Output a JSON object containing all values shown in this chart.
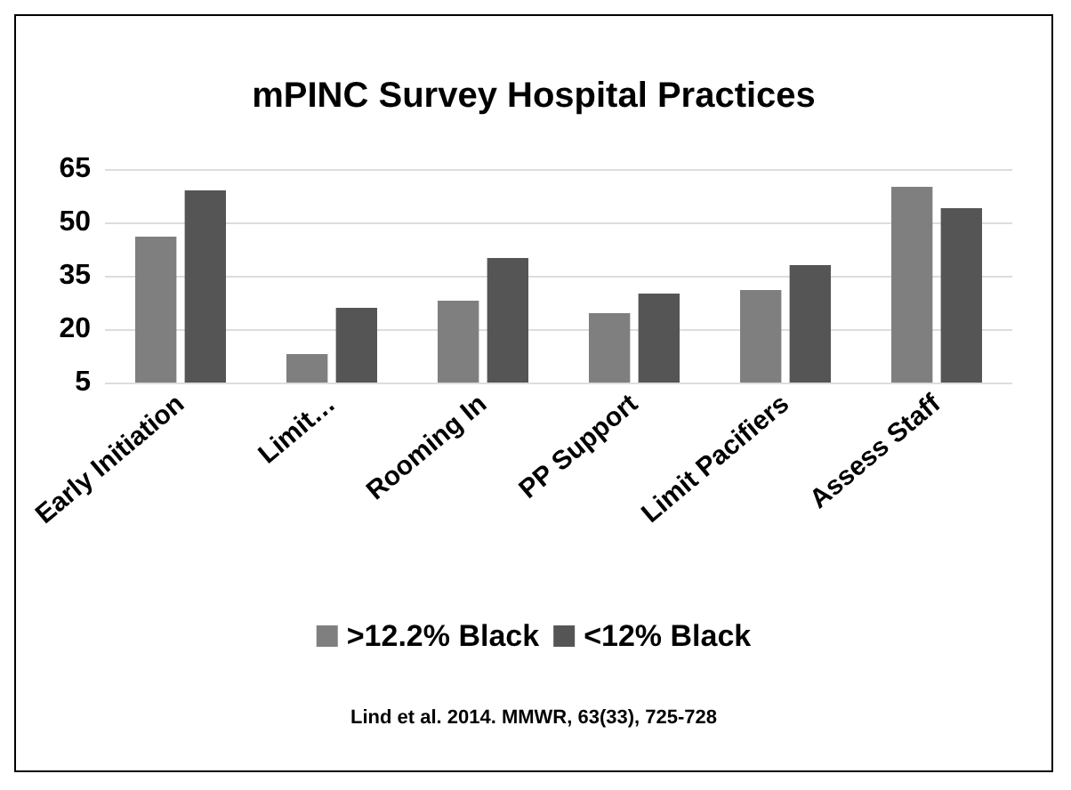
{
  "chart_data": {
    "type": "bar",
    "title": "mPINC Survey Hospital Practices",
    "categories": [
      "Early Initiation",
      "Limit…",
      "Rooming In",
      "PP Support",
      "Limit Pacifiers",
      "Assess Staff"
    ],
    "series": [
      {
        "name": ">12.2% Black",
        "color": "#7f7f7f",
        "values": [
          46,
          13,
          28,
          24.5,
          31,
          60
        ]
      },
      {
        "name": "<12% Black",
        "color": "#555555",
        "values": [
          59,
          26,
          40,
          30,
          38,
          54
        ]
      }
    ],
    "ylim": [
      5,
      65
    ],
    "yticks": [
      5,
      20,
      35,
      50,
      65
    ],
    "grid": "y",
    "legend": "bottom",
    "annotations": [
      "Lind et al. 2014. MMWR, 63(33), 725-728"
    ]
  }
}
